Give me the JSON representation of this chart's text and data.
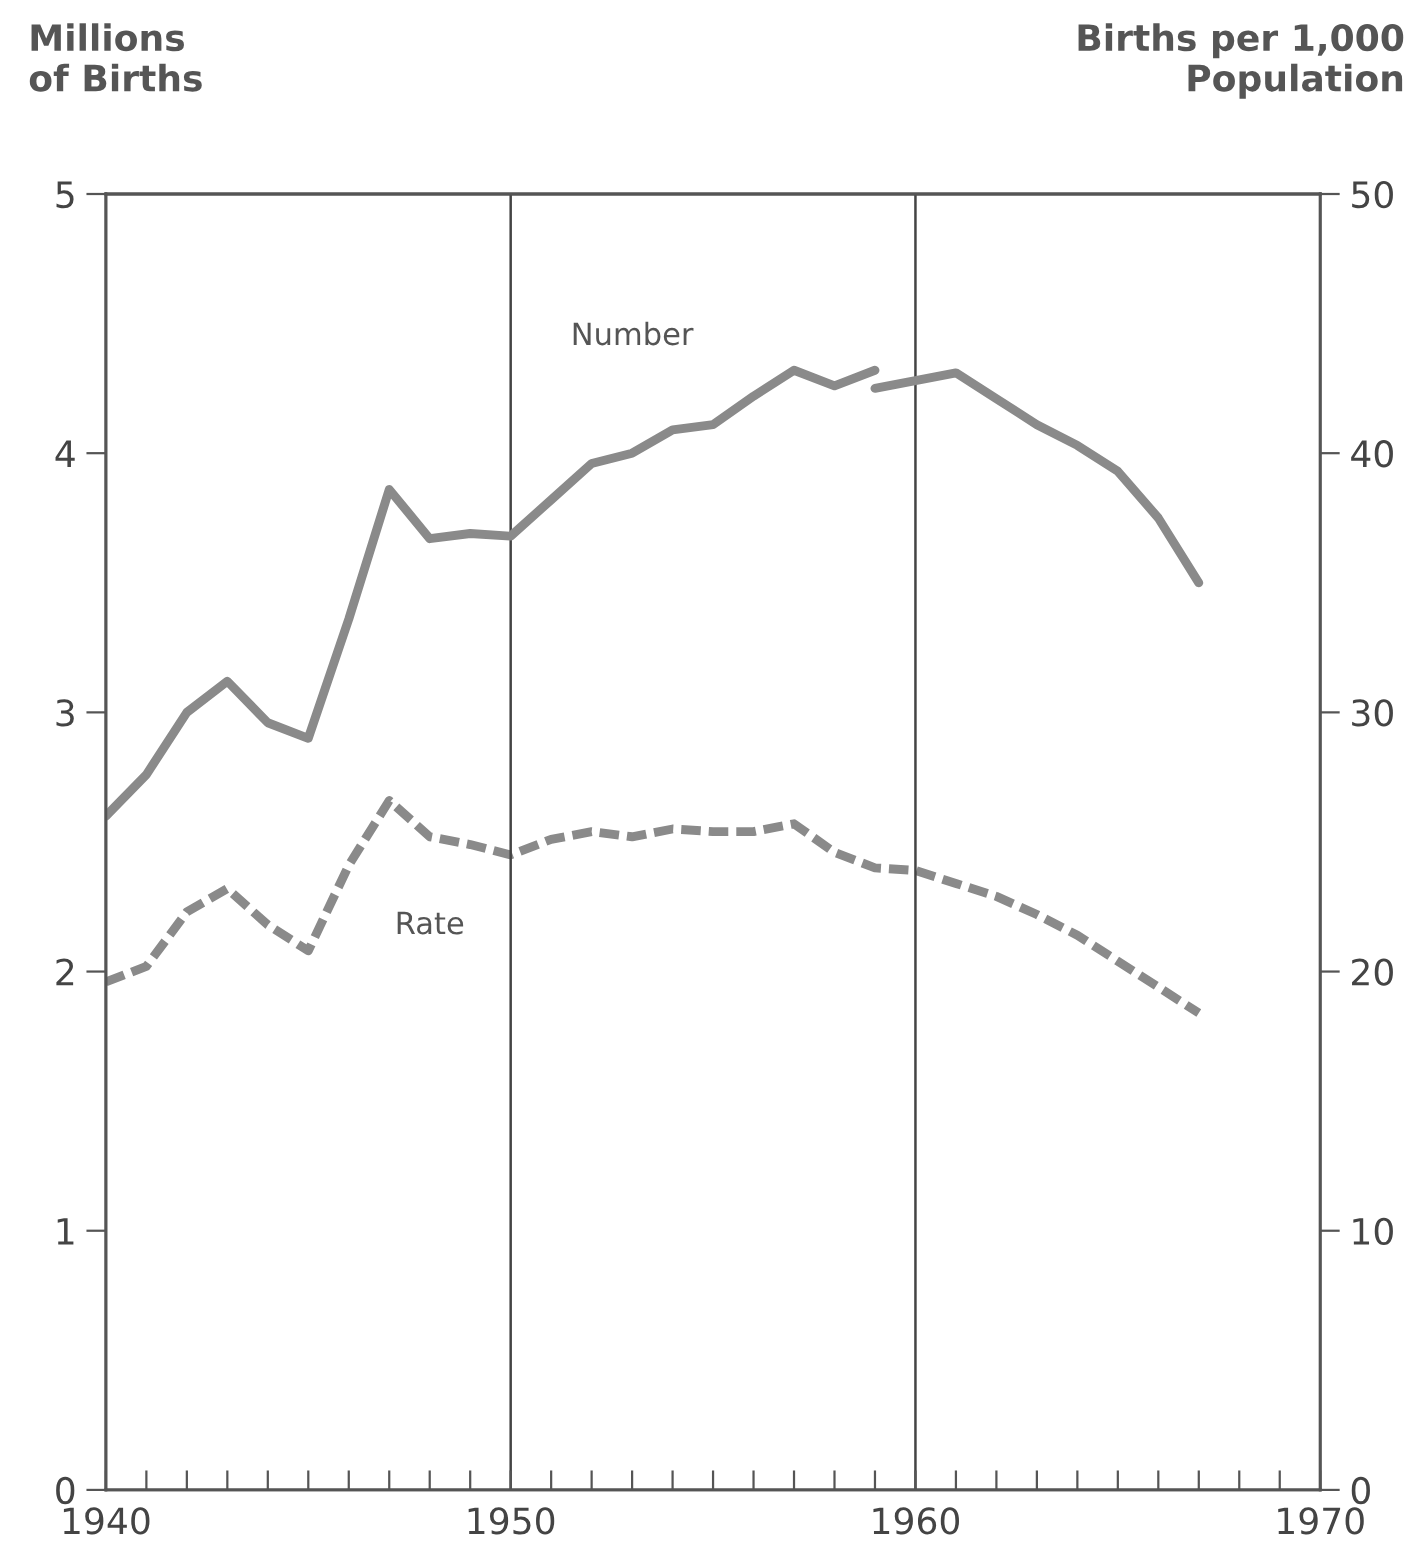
{
  "chart_data": {
    "type": "line",
    "ylabel": "Millions\nof Births",
    "y2label": "Births per 1,000\nPopulation",
    "series": [
      {
        "name": "Number",
        "color": "#8a8a8a",
        "line_style": "solid",
        "x": [
          1940,
          1941,
          1942,
          1943,
          1944,
          1945,
          1946,
          1947,
          1948,
          1949,
          1950,
          1951,
          1952,
          1953,
          1954,
          1955,
          1956,
          1957,
          1958,
          1959
        ],
        "values": [
          2.6,
          2.76,
          3.0,
          3.12,
          2.96,
          2.9,
          3.36,
          3.86,
          3.67,
          3.69,
          3.68,
          3.82,
          3.96,
          4.0,
          4.09,
          4.11,
          4.22,
          4.32,
          4.26,
          4.32
        ]
      },
      {
        "color": "#8a8a8a",
        "line_style": "solid",
        "x": [
          1959,
          1960,
          1961,
          1962,
          1963,
          1964,
          1965,
          1966,
          1967
        ],
        "values": [
          4.25,
          4.28,
          4.31,
          4.21,
          4.11,
          4.03,
          3.93,
          3.75,
          3.5
        ]
      },
      {
        "name": "Rate",
        "color": "#8a8a8a",
        "line_style": "dashed",
        "axis": "y2",
        "x": [
          1940,
          1941,
          1942,
          1943,
          1944,
          1945,
          1946,
          1947,
          1948,
          1949,
          1950,
          1951,
          1952,
          1953,
          1954,
          1955,
          1956,
          1957,
          1958,
          1959,
          1960,
          1961,
          1962,
          1963,
          1964,
          1965,
          1966,
          1967
        ],
        "values": [
          19.6,
          20.2,
          22.3,
          23.2,
          21.8,
          20.8,
          24.1,
          26.6,
          25.2,
          24.9,
          24.5,
          25.1,
          25.4,
          25.2,
          25.5,
          25.4,
          25.4,
          25.7,
          24.6,
          24.0,
          23.9,
          23.4,
          22.9,
          22.2,
          21.4,
          20.4,
          19.4,
          18.4
        ]
      }
    ],
    "ref_lines": [
      {
        "axis": "x",
        "value": 1950,
        "color": "#444444"
      },
      {
        "axis": "x",
        "value": 1960,
        "color": "#444444"
      }
    ],
    "xlim": [
      1940,
      1970
    ],
    "xticks": [
      1940,
      {
        "value": 1941,
        "label": null
      },
      {
        "value": 1942,
        "label": null
      },
      {
        "value": 1943,
        "label": null
      },
      {
        "value": 1944,
        "label": null
      },
      {
        "value": 1945,
        "label": null
      },
      {
        "value": 1946,
        "label": null
      },
      {
        "value": 1947,
        "label": null
      },
      {
        "value": 1948,
        "label": null
      },
      {
        "value": 1949,
        "label": null
      },
      1950,
      {
        "value": 1951,
        "label": null
      },
      {
        "value": 1952,
        "label": null
      },
      {
        "value": 1953,
        "label": null
      },
      {
        "value": 1954,
        "label": null
      },
      {
        "value": 1955,
        "label": null
      },
      {
        "value": 1956,
        "label": null
      },
      {
        "value": 1957,
        "label": null
      },
      {
        "value": 1958,
        "label": null
      },
      {
        "value": 1959,
        "label": null
      },
      1960,
      {
        "value": 1961,
        "label": null
      },
      {
        "value": 1962,
        "label": null
      },
      {
        "value": 1963,
        "label": null
      },
      {
        "value": 1964,
        "label": null
      },
      {
        "value": 1965,
        "label": null
      },
      {
        "value": 1966,
        "label": null
      },
      {
        "value": 1967,
        "label": null
      },
      {
        "value": 1968,
        "label": null
      },
      {
        "value": 1969,
        "label": null
      },
      1970
    ],
    "ylim": [
      0,
      5
    ],
    "yticks": [
      0,
      1,
      2,
      3,
      4,
      5
    ],
    "y2lim": [
      0,
      50
    ],
    "y2ticks": [
      0,
      10,
      20,
      30,
      40,
      50
    ],
    "grid": false,
    "legend": false,
    "marker": "none"
  }
}
